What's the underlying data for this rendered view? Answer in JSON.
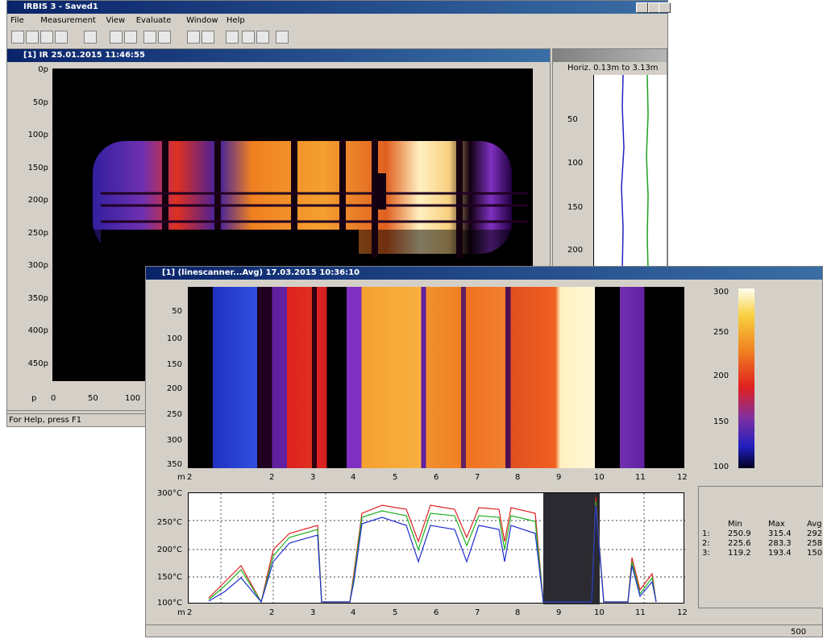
{
  "app": {
    "title": "IRBIS 3 - Saved1",
    "menu": [
      "File",
      "Measurement",
      "View",
      "Evaluate",
      "Window",
      "Help"
    ],
    "status": "For Help, press F1"
  },
  "image_window": {
    "title": "[1] IR 25.01.2015 11:46:55",
    "y_labels": [
      "0p",
      "50p",
      "100p",
      "150p",
      "200p",
      "250p",
      "300p",
      "350p",
      "400p",
      "450p"
    ],
    "x_labels": [
      "p",
      "0",
      "50",
      "100"
    ]
  },
  "profile_panel": {
    "title": "Horiz. 0.13m to 3.13m",
    "y_labels": [
      "50",
      "100",
      "150",
      "200"
    ]
  },
  "linescan_window": {
    "title": "[1] (linescanner...Avg) 17.03.2015 10:36:10",
    "y_labels": [
      "50",
      "100",
      "150",
      "200",
      "250",
      "300",
      "350"
    ],
    "x_labels": [
      "m",
      "2",
      "2",
      "3",
      "4",
      "5",
      "6",
      "7",
      "8",
      "9",
      "10",
      "11",
      "12"
    ],
    "colorbar_labels": [
      "300",
      "250",
      "200",
      "150",
      "100"
    ],
    "plot_y_labels": [
      "300°C",
      "250°C",
      "200°C",
      "150°C",
      "100°C"
    ],
    "plot_x_labels": [
      "m",
      "2",
      "2",
      "3",
      "4",
      "5",
      "6",
      "7",
      "8",
      "9",
      "10",
      "11",
      "12"
    ],
    "table": {
      "header": [
        "Min",
        "Max",
        "Avg"
      ],
      "rows": [
        [
          "1:",
          "250.9",
          "315.4",
          "292"
        ],
        [
          "2:",
          "225.6",
          "283.3",
          "258"
        ],
        [
          "3:",
          "119.2",
          "193.4",
          "150"
        ]
      ]
    },
    "status": "500"
  }
}
